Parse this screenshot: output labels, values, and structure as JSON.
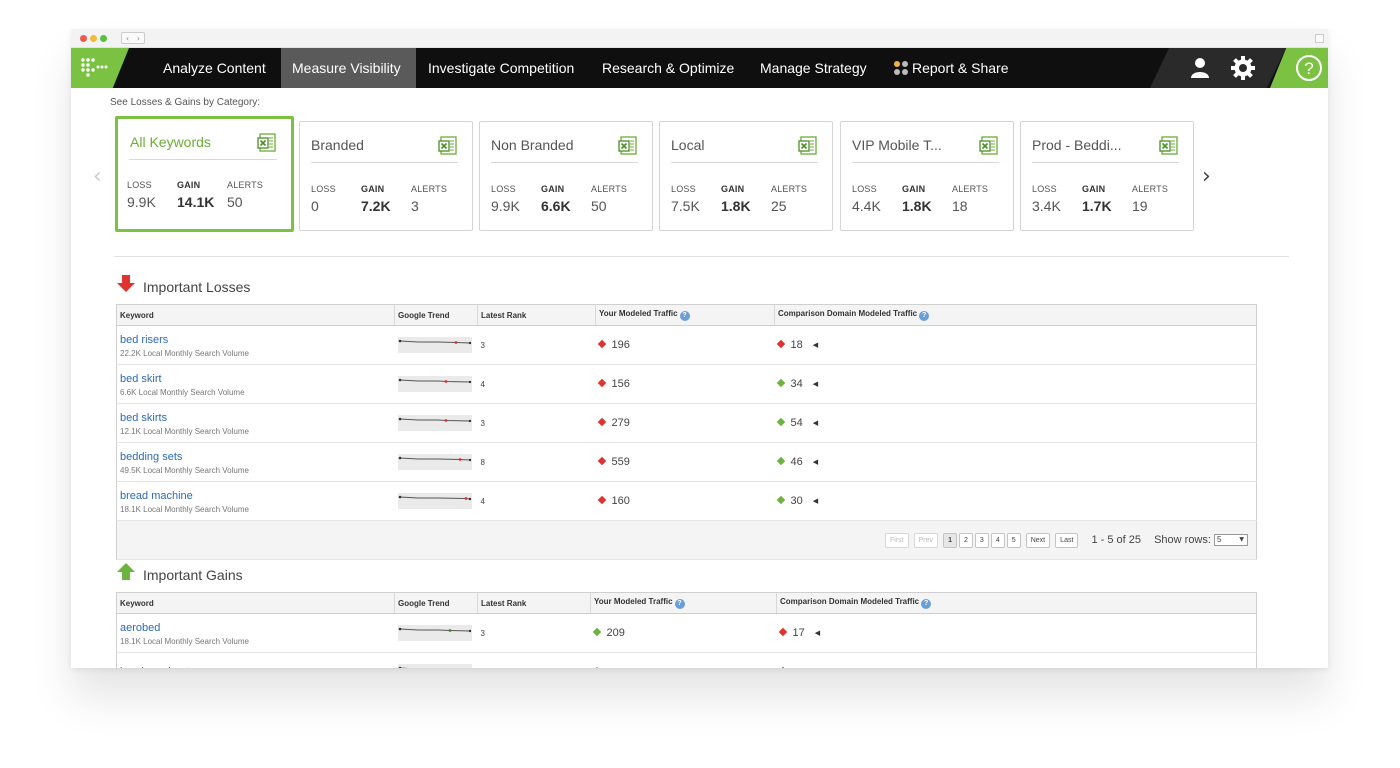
{
  "nav": {
    "items": [
      {
        "label": "Analyze Content",
        "active": false
      },
      {
        "label": "Measure Visibility",
        "active": true
      },
      {
        "label": "Investigate Competition",
        "active": false
      },
      {
        "label": "Research & Optimize",
        "active": false
      },
      {
        "label": "Manage Strategy",
        "active": false
      },
      {
        "label": "Report & Share",
        "active": false
      }
    ],
    "icons": [
      "user-icon",
      "gear-icon",
      "help-icon"
    ],
    "help_glyph": "?"
  },
  "categories": {
    "label": "See Losses & Gains by Category:",
    "stat_labels": {
      "loss": "LOSS",
      "gain": "GAIN",
      "alerts": "ALERTS"
    },
    "cards": [
      {
        "title": "All Keywords",
        "loss": "9.9K",
        "gain": "14.1K",
        "alerts": "50",
        "selected": true
      },
      {
        "title": "Branded",
        "loss": "0",
        "gain": "7.2K",
        "alerts": "3",
        "selected": false
      },
      {
        "title": "Non Branded",
        "loss": "9.9K",
        "gain": "6.6K",
        "alerts": "50",
        "selected": false
      },
      {
        "title": "Local",
        "loss": "7.5K",
        "gain": "1.8K",
        "alerts": "25",
        "selected": false
      },
      {
        "title": "VIP Mobile T...",
        "loss": "4.4K",
        "gain": "1.8K",
        "alerts": "18",
        "selected": false
      },
      {
        "title": "Prod - Beddi...",
        "loss": "3.4K",
        "gain": "1.7K",
        "alerts": "19",
        "selected": false
      }
    ]
  },
  "losses": {
    "title": "Important Losses",
    "columns": [
      "Keyword",
      "Google Trend",
      "Latest Rank",
      "Your Modeled Traffic",
      "Comparison Domain Modeled Traffic"
    ],
    "rows": [
      {
        "keyword": "bed risers",
        "volume": "22.2K Local Monthly Search Volume",
        "rank": "3",
        "traffic": "196",
        "traffic_dir": "down",
        "comp": "18",
        "comp_dir": "down"
      },
      {
        "keyword": "bed skirt",
        "volume": "6.6K Local Monthly Search Volume",
        "rank": "4",
        "traffic": "156",
        "traffic_dir": "down",
        "comp": "34",
        "comp_dir": "up"
      },
      {
        "keyword": "bed skirts",
        "volume": "12.1K Local Monthly Search Volume",
        "rank": "3",
        "traffic": "279",
        "traffic_dir": "down",
        "comp": "54",
        "comp_dir": "up"
      },
      {
        "keyword": "bedding sets",
        "volume": "49.5K Local Monthly Search Volume",
        "rank": "8",
        "traffic": "559",
        "traffic_dir": "down",
        "comp": "46",
        "comp_dir": "up"
      },
      {
        "keyword": "bread machine",
        "volume": "18.1K Local Monthly Search Volume",
        "rank": "4",
        "traffic": "160",
        "traffic_dir": "down",
        "comp": "30",
        "comp_dir": "up"
      }
    ],
    "pager": {
      "first": "First",
      "prev": "Prev",
      "pages": [
        "1",
        "2",
        "3",
        "4",
        "5"
      ],
      "current": "1",
      "next": "Next",
      "last": "Last",
      "info": "1 - 5 of 25",
      "show_rows_label": "Show rows:",
      "show_rows_value": "5"
    }
  },
  "gains": {
    "title": "Important Gains",
    "columns": [
      "Keyword",
      "Google Trend",
      "Latest Rank",
      "Your Modeled Traffic",
      "Comparison Domain Modeled Traffic"
    ],
    "rows": [
      {
        "keyword": "aerobed",
        "volume": "18.1K Local Monthly Search Volume",
        "rank": "3",
        "traffic": "209",
        "traffic_dir": "up",
        "comp": "17",
        "comp_dir": "down"
      },
      {
        "keyword": "bamboo sheets",
        "volume": "",
        "rank": "",
        "traffic": "",
        "traffic_dir": "up",
        "comp": "",
        "comp_dir": "down"
      }
    ]
  },
  "colors": {
    "accent": "#7cc242",
    "nav_bg": "#0f0f0f",
    "link": "#2d6bb5",
    "loss": "#e0332f",
    "gain": "#6db33f"
  }
}
